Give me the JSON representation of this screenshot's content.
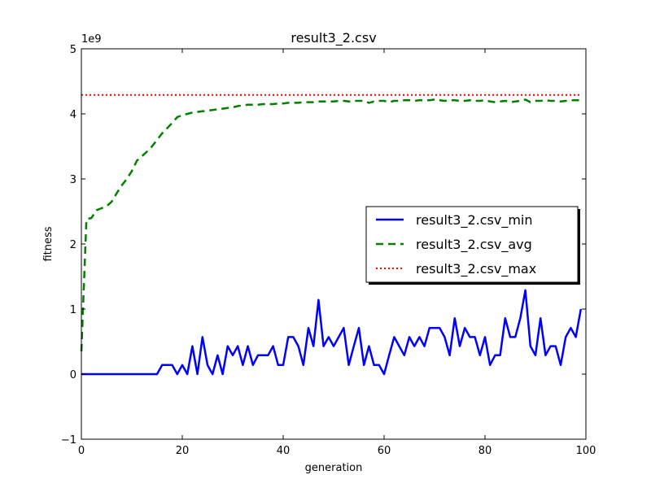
{
  "chart_data": {
    "type": "line",
    "title": "result3_2.csv",
    "xlabel": "generation",
    "ylabel": "fitness",
    "y_multiplier_label": "1e9",
    "xlim": [
      0,
      100
    ],
    "ylim": [
      -1,
      5
    ],
    "xticks": [
      0,
      20,
      40,
      60,
      80,
      100
    ],
    "xtick_labels": [
      "0",
      "20",
      "40",
      "60",
      "80",
      "100"
    ],
    "yticks": [
      -1,
      0,
      1,
      2,
      3,
      4,
      5
    ],
    "ytick_labels": [
      "−1",
      "0",
      "1",
      "2",
      "3",
      "4",
      "5"
    ],
    "grid": false,
    "legend_position": "center-right",
    "x": [
      0,
      1,
      2,
      3,
      4,
      5,
      6,
      7,
      8,
      9,
      10,
      11,
      12,
      13,
      14,
      15,
      16,
      17,
      18,
      19,
      20,
      21,
      22,
      23,
      24,
      25,
      26,
      27,
      28,
      29,
      30,
      31,
      32,
      33,
      34,
      35,
      36,
      37,
      38,
      39,
      40,
      41,
      42,
      43,
      44,
      45,
      46,
      47,
      48,
      49,
      50,
      51,
      52,
      53,
      54,
      55,
      56,
      57,
      58,
      59,
      60,
      61,
      62,
      63,
      64,
      65,
      66,
      67,
      68,
      69,
      70,
      71,
      72,
      73,
      74,
      75,
      76,
      77,
      78,
      79,
      80,
      81,
      82,
      83,
      84,
      85,
      86,
      87,
      88,
      89,
      90,
      91,
      92,
      93,
      94,
      95,
      96,
      97,
      98,
      99
    ],
    "series": [
      {
        "name": "result3_2.csv_min",
        "color": "#0000ff",
        "style": "solid",
        "values": [
          0,
          0,
          0,
          0,
          0,
          0,
          0,
          0,
          0,
          0,
          0,
          0,
          0,
          0,
          0,
          0,
          0.14,
          0.14,
          0.14,
          0,
          0.14,
          0,
          0.43,
          0,
          0.57,
          0.14,
          0,
          0.29,
          0,
          0.43,
          0.29,
          0.43,
          0.14,
          0.43,
          0.14,
          0.29,
          0.29,
          0.29,
          0.43,
          0.14,
          0.14,
          0.57,
          0.57,
          0.43,
          0.14,
          0.71,
          0.43,
          1.14,
          0.43,
          0.57,
          0.43,
          0.57,
          0.71,
          0.14,
          0.43,
          0.71,
          0.14,
          0.43,
          0.14,
          0.14,
          0,
          0.29,
          0.57,
          0.43,
          0.29,
          0.57,
          0.43,
          0.57,
          0.43,
          0.71,
          0.71,
          0.71,
          0.57,
          0.29,
          0.86,
          0.43,
          0.71,
          0.57,
          0.57,
          0.29,
          0.57,
          0.14,
          0.29,
          0.29,
          0.86,
          0.57,
          0.57,
          0.86,
          1.29,
          0.43,
          0.29,
          0.86,
          0.29,
          0.43,
          0.43,
          0.14,
          0.57,
          0.71,
          0.57,
          1.0
        ]
      },
      {
        "name": "result3_2.csv_avg",
        "color": "#008000",
        "style": "dashed",
        "values": [
          0.35,
          2.38,
          2.4,
          2.52,
          2.55,
          2.58,
          2.65,
          2.78,
          2.9,
          3.0,
          3.12,
          3.28,
          3.35,
          3.42,
          3.5,
          3.6,
          3.7,
          3.78,
          3.86,
          3.95,
          3.98,
          4.0,
          4.02,
          4.03,
          4.04,
          4.05,
          4.06,
          4.07,
          4.08,
          4.09,
          4.1,
          4.12,
          4.13,
          4.14,
          4.14,
          4.14,
          4.15,
          4.15,
          4.15,
          4.16,
          4.16,
          4.17,
          4.17,
          4.17,
          4.18,
          4.18,
          4.18,
          4.19,
          4.19,
          4.19,
          4.19,
          4.2,
          4.2,
          4.19,
          4.2,
          4.2,
          4.2,
          4.17,
          4.19,
          4.2,
          4.2,
          4.18,
          4.2,
          4.2,
          4.21,
          4.21,
          4.2,
          4.21,
          4.21,
          4.21,
          4.22,
          4.21,
          4.2,
          4.21,
          4.21,
          4.2,
          4.2,
          4.21,
          4.2,
          4.2,
          4.21,
          4.19,
          4.18,
          4.19,
          4.2,
          4.18,
          4.19,
          4.2,
          4.22,
          4.18,
          4.2,
          4.2,
          4.21,
          4.2,
          4.2,
          4.19,
          4.2,
          4.21,
          4.21,
          4.21
        ]
      },
      {
        "name": "result3_2.csv_max",
        "color": "#ff0000",
        "style": "dotted",
        "values": [
          4.29,
          4.29,
          4.29,
          4.29,
          4.29,
          4.29,
          4.29,
          4.29,
          4.29,
          4.29,
          4.29,
          4.29,
          4.29,
          4.29,
          4.29,
          4.29,
          4.29,
          4.29,
          4.29,
          4.29,
          4.29,
          4.29,
          4.29,
          4.29,
          4.29,
          4.29,
          4.29,
          4.29,
          4.29,
          4.29,
          4.29,
          4.29,
          4.29,
          4.29,
          4.29,
          4.29,
          4.29,
          4.29,
          4.29,
          4.29,
          4.29,
          4.29,
          4.29,
          4.29,
          4.29,
          4.29,
          4.29,
          4.29,
          4.29,
          4.29,
          4.29,
          4.29,
          4.29,
          4.29,
          4.29,
          4.29,
          4.29,
          4.29,
          4.29,
          4.29,
          4.29,
          4.29,
          4.29,
          4.29,
          4.29,
          4.29,
          4.29,
          4.29,
          4.29,
          4.29,
          4.29,
          4.29,
          4.29,
          4.29,
          4.29,
          4.29,
          4.29,
          4.29,
          4.29,
          4.29,
          4.29,
          4.29,
          4.29,
          4.29,
          4.29,
          4.29,
          4.29,
          4.29,
          4.29,
          4.29,
          4.29,
          4.29,
          4.29,
          4.29,
          4.29,
          4.29,
          4.29,
          4.29,
          4.29,
          4.29
        ]
      }
    ]
  }
}
